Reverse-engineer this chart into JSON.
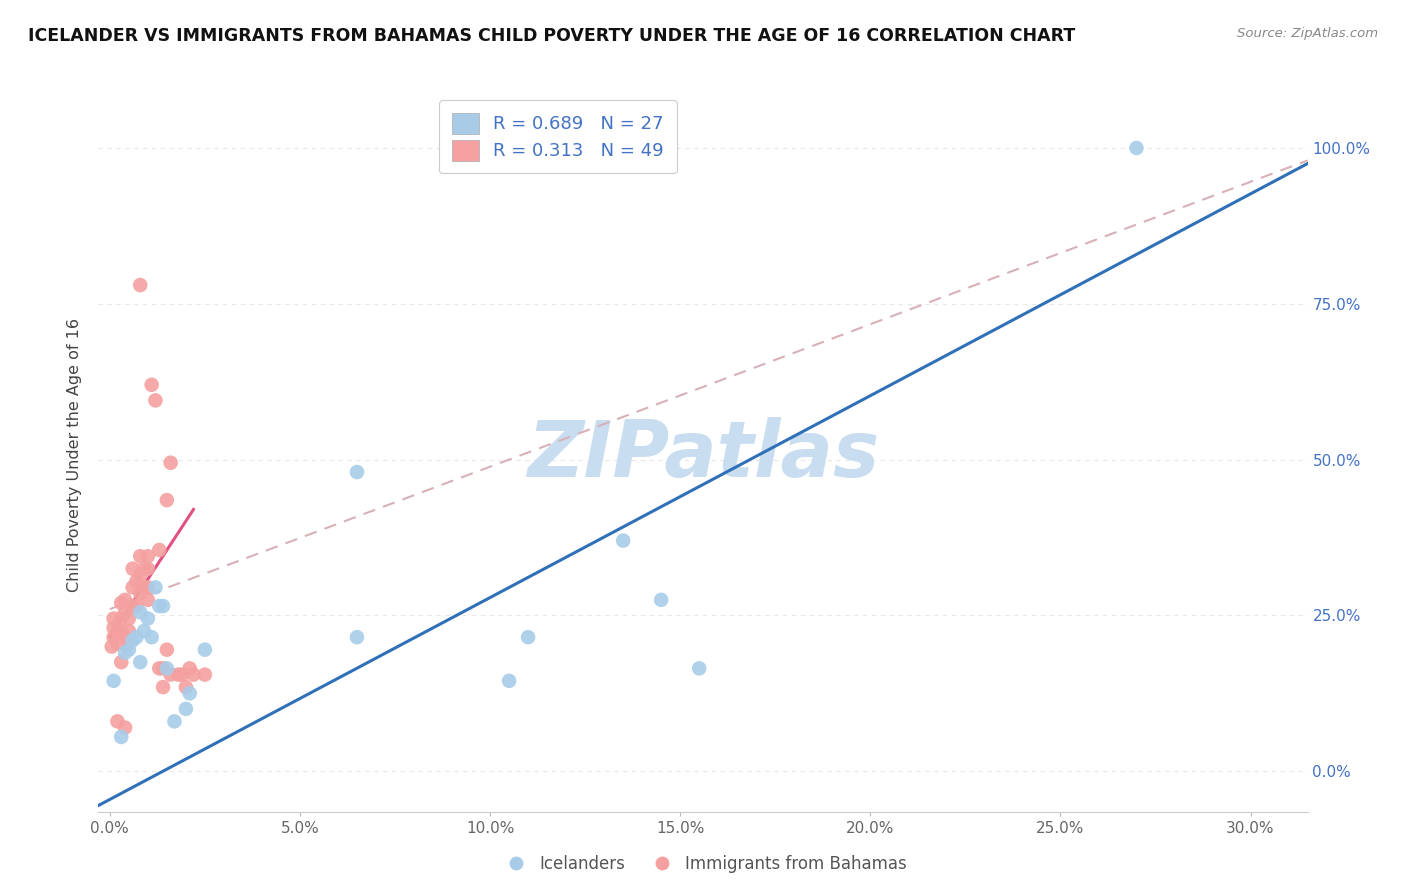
{
  "title": "ICELANDER VS IMMIGRANTS FROM BAHAMAS CHILD POVERTY UNDER THE AGE OF 16 CORRELATION CHART",
  "source": "Source: ZipAtlas.com",
  "xlabel_ticks": [
    "0.0%",
    "5.0%",
    "10.0%",
    "15.0%",
    "20.0%",
    "25.0%",
    "30.0%"
  ],
  "xlabel_vals": [
    0.0,
    0.05,
    0.1,
    0.15,
    0.2,
    0.25,
    0.3
  ],
  "ylabel_ticks_right": [
    "100.0%",
    "75.0%",
    "50.0%",
    "25.0%",
    "0.0%"
  ],
  "ylabel_vals_right": [
    1.0,
    0.75,
    0.5,
    0.25,
    0.0
  ],
  "xlim": [
    -0.003,
    0.315
  ],
  "ylim": [
    -0.065,
    1.08
  ],
  "legend1_label": "R = 0.689   N = 27",
  "legend2_label": "R = 0.313   N = 49",
  "legend_bottom": [
    "Icelanders",
    "Immigrants from Bahamas"
  ],
  "blue_color": "#a8cce8",
  "pink_color": "#f4a0a0",
  "trend_blue_color": "#3070b8",
  "trend_pink_color": "#e05080",
  "diag_color": "#d8b0b8",
  "blue_scatter_x": [
    0.001,
    0.003,
    0.004,
    0.005,
    0.006,
    0.007,
    0.008,
    0.008,
    0.009,
    0.01,
    0.011,
    0.012,
    0.013,
    0.014,
    0.015,
    0.017,
    0.02,
    0.021,
    0.025,
    0.065,
    0.065,
    0.105,
    0.11,
    0.135,
    0.145,
    0.27,
    0.155
  ],
  "blue_scatter_y": [
    0.145,
    0.055,
    0.19,
    0.195,
    0.21,
    0.215,
    0.175,
    0.255,
    0.225,
    0.245,
    0.215,
    0.295,
    0.265,
    0.265,
    0.165,
    0.08,
    0.1,
    0.125,
    0.195,
    0.215,
    0.48,
    0.145,
    0.215,
    0.37,
    0.275,
    1.0,
    0.165
  ],
  "pink_scatter_x": [
    0.0005,
    0.001,
    0.001,
    0.001,
    0.002,
    0.002,
    0.002,
    0.003,
    0.003,
    0.003,
    0.003,
    0.004,
    0.004,
    0.004,
    0.004,
    0.005,
    0.005,
    0.005,
    0.006,
    0.006,
    0.006,
    0.007,
    0.007,
    0.008,
    0.008,
    0.008,
    0.008,
    0.009,
    0.009,
    0.01,
    0.01,
    0.01,
    0.01,
    0.011,
    0.012,
    0.013,
    0.013,
    0.014,
    0.014,
    0.015,
    0.015,
    0.016,
    0.016,
    0.018,
    0.019,
    0.02,
    0.021,
    0.022,
    0.025
  ],
  "pink_scatter_y": [
    0.2,
    0.215,
    0.23,
    0.245,
    0.205,
    0.225,
    0.08,
    0.175,
    0.225,
    0.245,
    0.27,
    0.07,
    0.215,
    0.255,
    0.275,
    0.205,
    0.225,
    0.245,
    0.265,
    0.295,
    0.325,
    0.265,
    0.305,
    0.285,
    0.315,
    0.345,
    0.78,
    0.295,
    0.325,
    0.275,
    0.295,
    0.325,
    0.345,
    0.62,
    0.595,
    0.355,
    0.165,
    0.165,
    0.135,
    0.435,
    0.195,
    0.495,
    0.155,
    0.155,
    0.155,
    0.135,
    0.165,
    0.155,
    0.155
  ],
  "blue_trend_x": [
    -0.003,
    0.315
  ],
  "blue_trend_y": [
    -0.055,
    0.975
  ],
  "pink_trend_x": [
    0.0,
    0.022
  ],
  "pink_trend_y": [
    0.215,
    0.42
  ],
  "diag_trend_x": [
    0.0,
    0.315
  ],
  "diag_trend_y": [
    0.26,
    0.98
  ],
  "watermark": "ZIPatlas",
  "watermark_color": "#c8ddf0",
  "background_color": "#ffffff",
  "grid_color": "#e8e8e8"
}
